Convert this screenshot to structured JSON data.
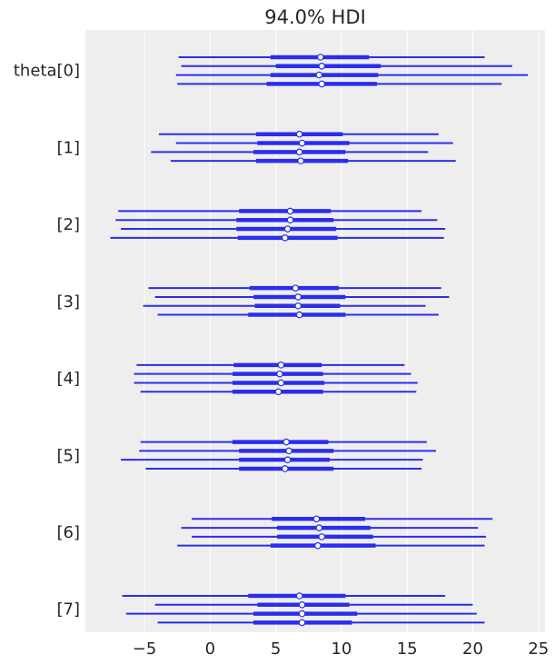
{
  "chart_data": {
    "type": "forest",
    "title": "94.0% HDI",
    "xlim": [
      -9.5,
      25.5
    ],
    "x_ticks": [
      -5,
      0,
      5,
      10,
      15,
      20,
      25
    ],
    "x_tick_labels": [
      "−5",
      "0",
      "5",
      "10",
      "15",
      "20",
      "25"
    ],
    "grid": "vertical",
    "colors": {
      "series": "#2a2eec",
      "background": "#eeeeee",
      "grid": "#ffffff",
      "marker_fill": "#ffffff"
    },
    "variables": [
      {
        "label": "theta[0]",
        "chains": [
          {
            "hdi": [
              -2.4,
              20.9
            ],
            "iqr": [
              4.6,
              12.1
            ],
            "median": 8.4
          },
          {
            "hdi": [
              -2.2,
              23.0
            ],
            "iqr": [
              5.0,
              13.0
            ],
            "median": 8.5
          },
          {
            "hdi": [
              -2.6,
              24.2
            ],
            "iqr": [
              4.6,
              12.8
            ],
            "median": 8.3
          },
          {
            "hdi": [
              -2.5,
              22.2
            ],
            "iqr": [
              4.3,
              12.7
            ],
            "median": 8.5
          }
        ]
      },
      {
        "label": "[1]",
        "chains": [
          {
            "hdi": [
              -3.9,
              17.4
            ],
            "iqr": [
              3.5,
              10.1
            ],
            "median": 6.8
          },
          {
            "hdi": [
              -2.6,
              18.5
            ],
            "iqr": [
              3.6,
              10.6
            ],
            "median": 7.0
          },
          {
            "hdi": [
              -4.5,
              16.6
            ],
            "iqr": [
              3.3,
              10.3
            ],
            "median": 6.8
          },
          {
            "hdi": [
              -3.0,
              18.7
            ],
            "iqr": [
              3.5,
              10.5
            ],
            "median": 6.9
          }
        ]
      },
      {
        "label": "[2]",
        "chains": [
          {
            "hdi": [
              -7.0,
              16.1
            ],
            "iqr": [
              2.2,
              9.2
            ],
            "median": 6.1
          },
          {
            "hdi": [
              -7.2,
              17.3
            ],
            "iqr": [
              2.0,
              9.4
            ],
            "median": 6.1
          },
          {
            "hdi": [
              -6.8,
              17.9
            ],
            "iqr": [
              2.0,
              9.6
            ],
            "median": 5.9
          },
          {
            "hdi": [
              -7.6,
              17.8
            ],
            "iqr": [
              2.1,
              9.7
            ],
            "median": 5.7
          }
        ]
      },
      {
        "label": "[3]",
        "chains": [
          {
            "hdi": [
              -4.7,
              17.6
            ],
            "iqr": [
              3.0,
              9.8
            ],
            "median": 6.5
          },
          {
            "hdi": [
              -4.2,
              18.2
            ],
            "iqr": [
              3.3,
              10.3
            ],
            "median": 6.7
          },
          {
            "hdi": [
              -5.1,
              16.4
            ],
            "iqr": [
              3.4,
              9.9
            ],
            "median": 6.7
          },
          {
            "hdi": [
              -4.0,
              17.4
            ],
            "iqr": [
              2.9,
              10.3
            ],
            "median": 6.8
          }
        ]
      },
      {
        "label": "[4]",
        "chains": [
          {
            "hdi": [
              -5.6,
              14.8
            ],
            "iqr": [
              1.8,
              8.5
            ],
            "median": 5.4
          },
          {
            "hdi": [
              -5.8,
              15.3
            ],
            "iqr": [
              1.7,
              8.6
            ],
            "median": 5.3
          },
          {
            "hdi": [
              -5.8,
              15.8
            ],
            "iqr": [
              1.7,
              8.7
            ],
            "median": 5.4
          },
          {
            "hdi": [
              -5.3,
              15.7
            ],
            "iqr": [
              1.7,
              8.6
            ],
            "median": 5.2
          }
        ]
      },
      {
        "label": "[5]",
        "chains": [
          {
            "hdi": [
              -5.3,
              16.5
            ],
            "iqr": [
              1.7,
              9.0
            ],
            "median": 5.8
          },
          {
            "hdi": [
              -5.4,
              17.2
            ],
            "iqr": [
              2.2,
              9.4
            ],
            "median": 6.0
          },
          {
            "hdi": [
              -6.8,
              16.2
            ],
            "iqr": [
              2.2,
              9.1
            ],
            "median": 5.9
          },
          {
            "hdi": [
              -4.9,
              16.1
            ],
            "iqr": [
              2.2,
              9.4
            ],
            "median": 5.7
          }
        ]
      },
      {
        "label": "[6]",
        "chains": [
          {
            "hdi": [
              -1.4,
              21.5
            ],
            "iqr": [
              4.7,
              11.8
            ],
            "median": 8.1
          },
          {
            "hdi": [
              -2.2,
              20.4
            ],
            "iqr": [
              5.1,
              12.2
            ],
            "median": 8.3
          },
          {
            "hdi": [
              -1.4,
              21.0
            ],
            "iqr": [
              5.1,
              12.4
            ],
            "median": 8.5
          },
          {
            "hdi": [
              -2.5,
              20.9
            ],
            "iqr": [
              4.6,
              12.6
            ],
            "median": 8.2
          }
        ]
      },
      {
        "label": "[7]",
        "chains": [
          {
            "hdi": [
              -6.7,
              17.9
            ],
            "iqr": [
              2.9,
              10.3
            ],
            "median": 6.8
          },
          {
            "hdi": [
              -4.2,
              20.0
            ],
            "iqr": [
              3.6,
              10.6
            ],
            "median": 7.0
          },
          {
            "hdi": [
              -6.4,
              20.3
            ],
            "iqr": [
              3.3,
              11.2
            ],
            "median": 7.0
          },
          {
            "hdi": [
              -4.0,
              20.9
            ],
            "iqr": [
              3.3,
              10.8
            ],
            "median": 7.0
          }
        ]
      }
    ]
  }
}
